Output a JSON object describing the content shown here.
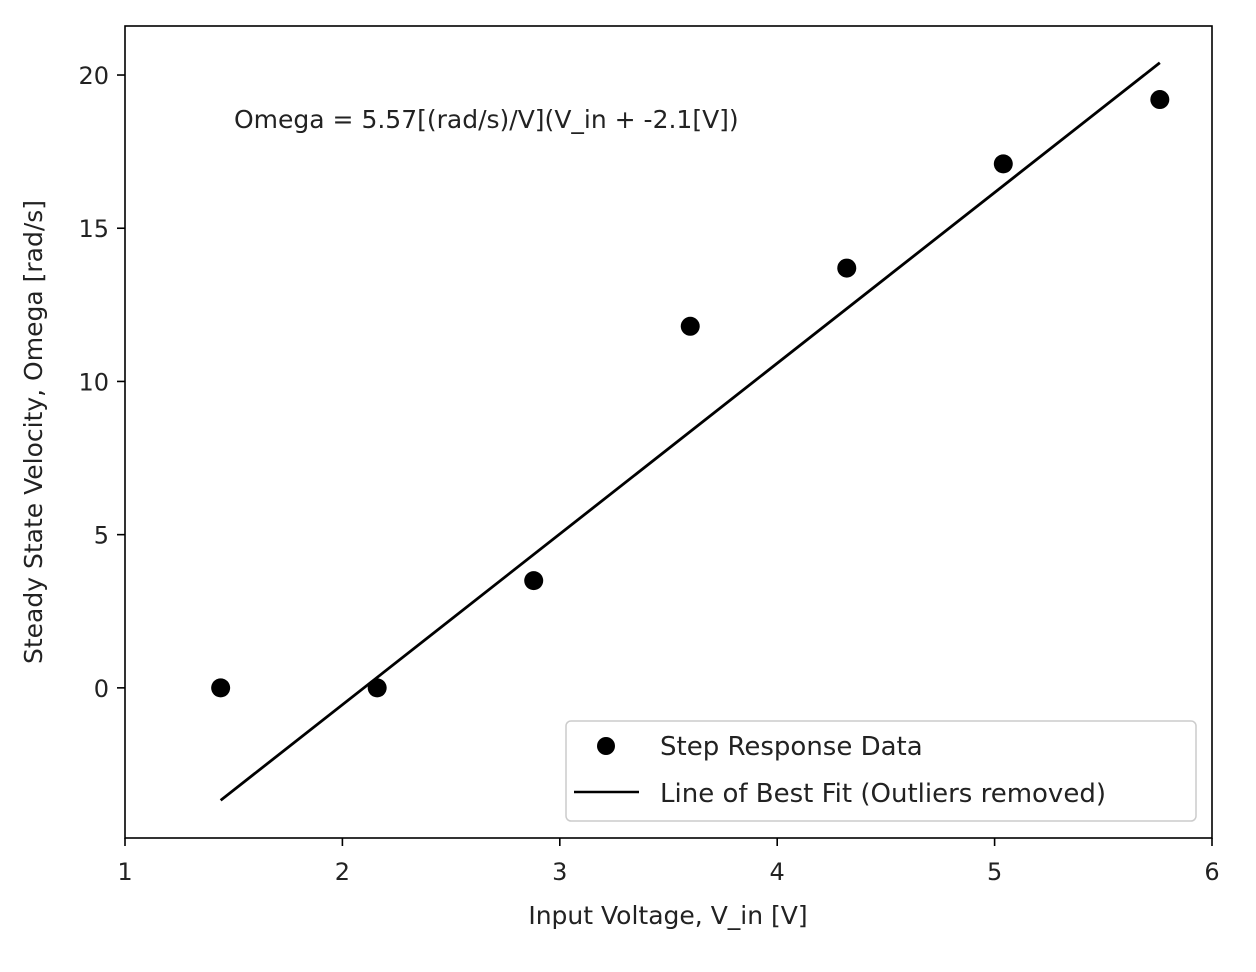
{
  "chart_data": {
    "type": "scatter",
    "title": "",
    "xlabel": "Input Voltage, V_in [V]",
    "ylabel": "Steady State Velocity, Omega [rad/s]",
    "xlim": [
      1,
      6
    ],
    "ylim": [
      -4.9,
      21.6
    ],
    "xticks": [
      1,
      2,
      3,
      4,
      5,
      6
    ],
    "yticks": [
      0,
      5,
      10,
      15,
      20
    ],
    "grid": false,
    "annotation": "Omega = 5.57[(rad/s)/V](V_in + -2.1[V])",
    "legend_position": "lower-right",
    "series": [
      {
        "name": "Step Response Data",
        "type": "scatter",
        "color": "#000000",
        "x": [
          1.44,
          2.16,
          2.88,
          3.6,
          4.32,
          5.04,
          5.76
        ],
        "y": [
          0.0,
          0.0,
          3.5,
          11.8,
          13.7,
          17.1,
          19.2
        ]
      },
      {
        "name": "Line of Best Fit (Outliers removed)",
        "type": "line",
        "color": "#000000",
        "x": [
          1.44,
          5.76
        ],
        "y": [
          -3.67,
          20.4
        ]
      }
    ]
  }
}
